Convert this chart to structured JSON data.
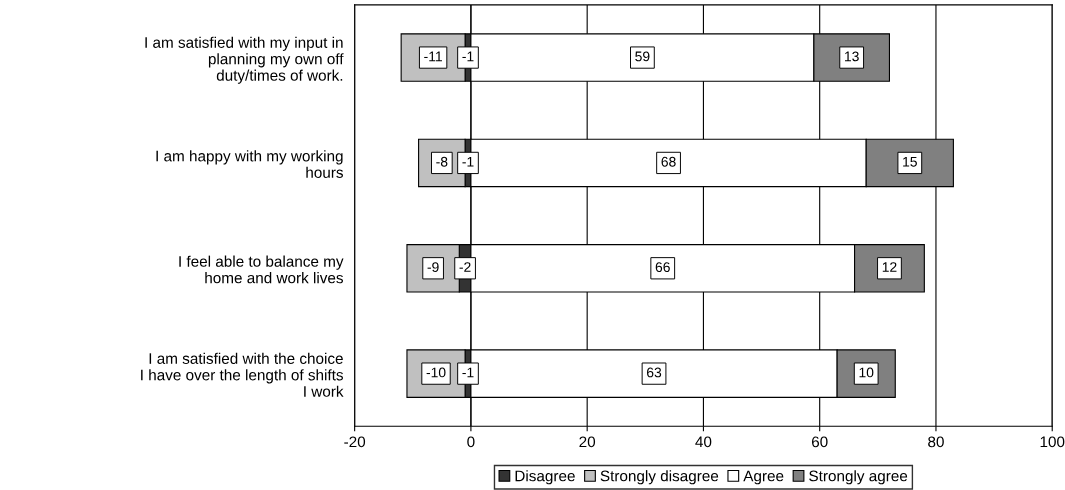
{
  "chart_data": {
    "type": "bar",
    "orientation": "horizontal",
    "stacked": true,
    "categories": [
      "I am satisfied with my input in\nplanning my own off\nduty/times of work.",
      "I am happy with my working\nhours",
      "I feel able to balance my\nhome and work lives",
      "I am satisfied with the choice\nI have over the length of shifts\nI work"
    ],
    "series": [
      {
        "name": "Disagree",
        "color": "#333333",
        "values": [
          -1,
          -1,
          -2,
          -1
        ]
      },
      {
        "name": "Strongly disagree",
        "color": "#c0c0c0",
        "values": [
          -11,
          -8,
          -9,
          -10
        ]
      },
      {
        "name": "Agree",
        "color": "#ffffff",
        "values": [
          59,
          68,
          66,
          63
        ]
      },
      {
        "name": "Strongly agree",
        "color": "#808080",
        "values": [
          13,
          15,
          12,
          10
        ]
      }
    ],
    "xlim": [
      -20,
      100
    ],
    "xticks": [
      -20,
      0,
      20,
      40,
      60,
      80,
      100
    ],
    "grid": "x",
    "legend": "bottom",
    "data_labels": true
  }
}
